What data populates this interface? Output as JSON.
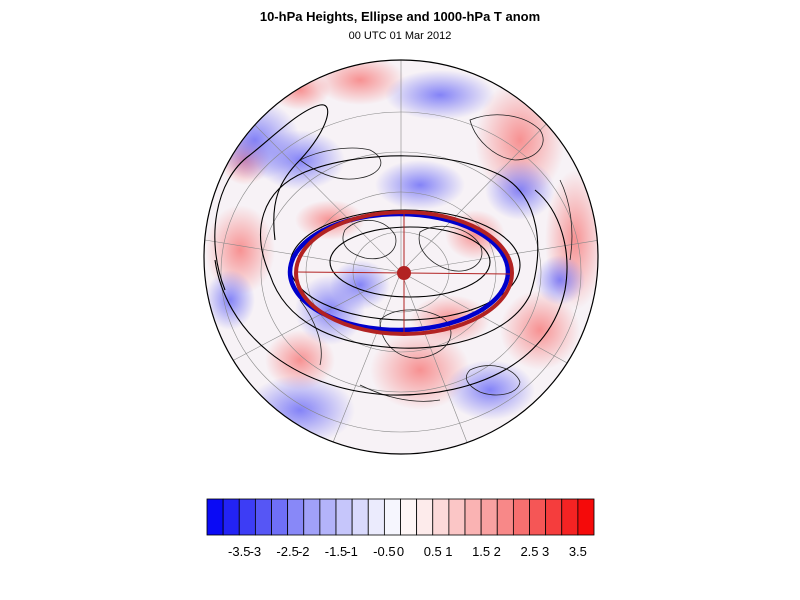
{
  "title": "10-hPa Heights, Ellipse and 1000-hPa T anom",
  "subtitle": "00 UTC 01 Mar 2012",
  "colorbar": {
    "labels": [
      "-3.5",
      "-3",
      "-2.5",
      "-2",
      "-1.5",
      "-1",
      "-0.5",
      "0",
      "0.5",
      "1",
      "1.5",
      "2",
      "2.5",
      "3",
      "3.5"
    ],
    "colors": [
      "#0a0af5",
      "#2323f5",
      "#3d3df5",
      "#5656f5",
      "#6f6ff7",
      "#8888f8",
      "#a1a1f9",
      "#b3b3fa",
      "#c6c6fb",
      "#d9d9fc",
      "#ebebfd",
      "#f6f6fe",
      "#fef6f6",
      "#fdebeb",
      "#fcd9d9",
      "#fbc6c6",
      "#fab3b3",
      "#f9a1a1",
      "#f88888",
      "#f76f6f",
      "#f55656",
      "#f53d3d",
      "#f52323",
      "#f50a0a"
    ]
  },
  "map": {
    "projection": "orthographic-north-polar",
    "ellipse_colors": {
      "observed": "#0000cc",
      "fitted": "#b22222"
    }
  }
}
